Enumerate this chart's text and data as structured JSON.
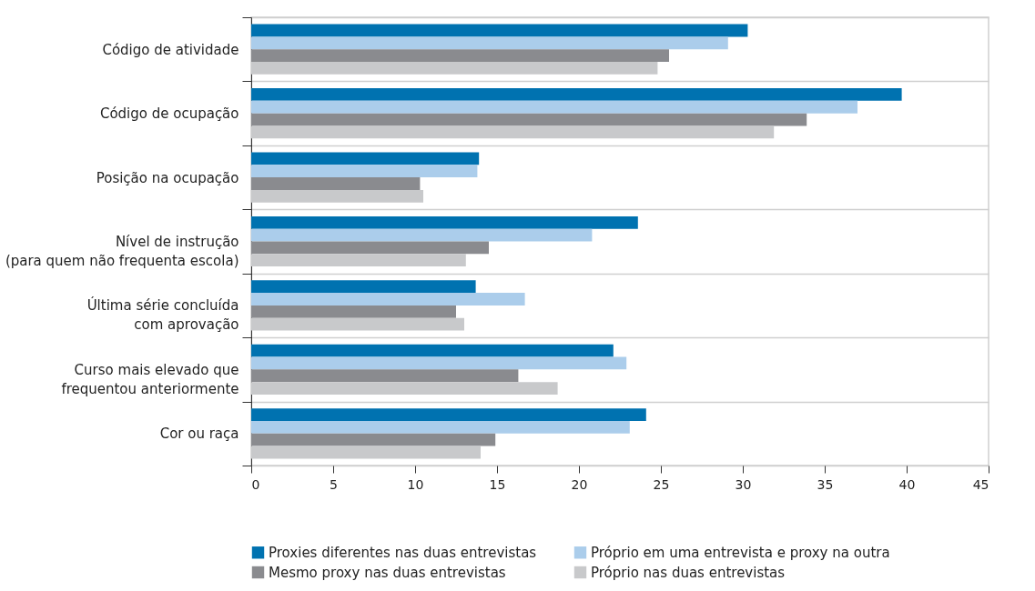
{
  "chart_data": {
    "type": "bar",
    "orientation": "horizontal",
    "categories": [
      "Código de atividade",
      "Código de ocupação",
      "Posição na ocupação",
      "Nível de instrução\n(para quem não frequenta escola)",
      "Última série concluída\ncom aprovação",
      "Curso mais elevado que\nfrequentou anteriormente",
      "Cor ou raça"
    ],
    "series": [
      {
        "name": "Proxies diferentes nas duas entrevistas",
        "color": "#0072b0",
        "values": [
          30.3,
          39.7,
          13.9,
          23.6,
          13.7,
          22.1,
          24.1
        ]
      },
      {
        "name": "Próprio em uma entrevista e proxy na outra",
        "color": "#abcdeb",
        "values": [
          29.1,
          37.0,
          13.8,
          20.8,
          16.7,
          22.9,
          23.1
        ]
      },
      {
        "name": "Mesmo proxy nas duas entrevistas",
        "color": "#8a8b8f",
        "values": [
          25.5,
          33.9,
          10.3,
          14.5,
          12.5,
          16.3,
          14.9
        ]
      },
      {
        "name": "Próprio nas duas entrevistas",
        "color": "#c8c9cb",
        "values": [
          24.8,
          31.9,
          10.5,
          13.1,
          13.0,
          18.7,
          14.0
        ]
      }
    ],
    "xlim": [
      0,
      45
    ],
    "xticks": [
      0,
      5,
      10,
      15,
      20,
      25,
      30,
      35,
      40,
      45
    ],
    "grid": "y",
    "legend": "bottom"
  }
}
